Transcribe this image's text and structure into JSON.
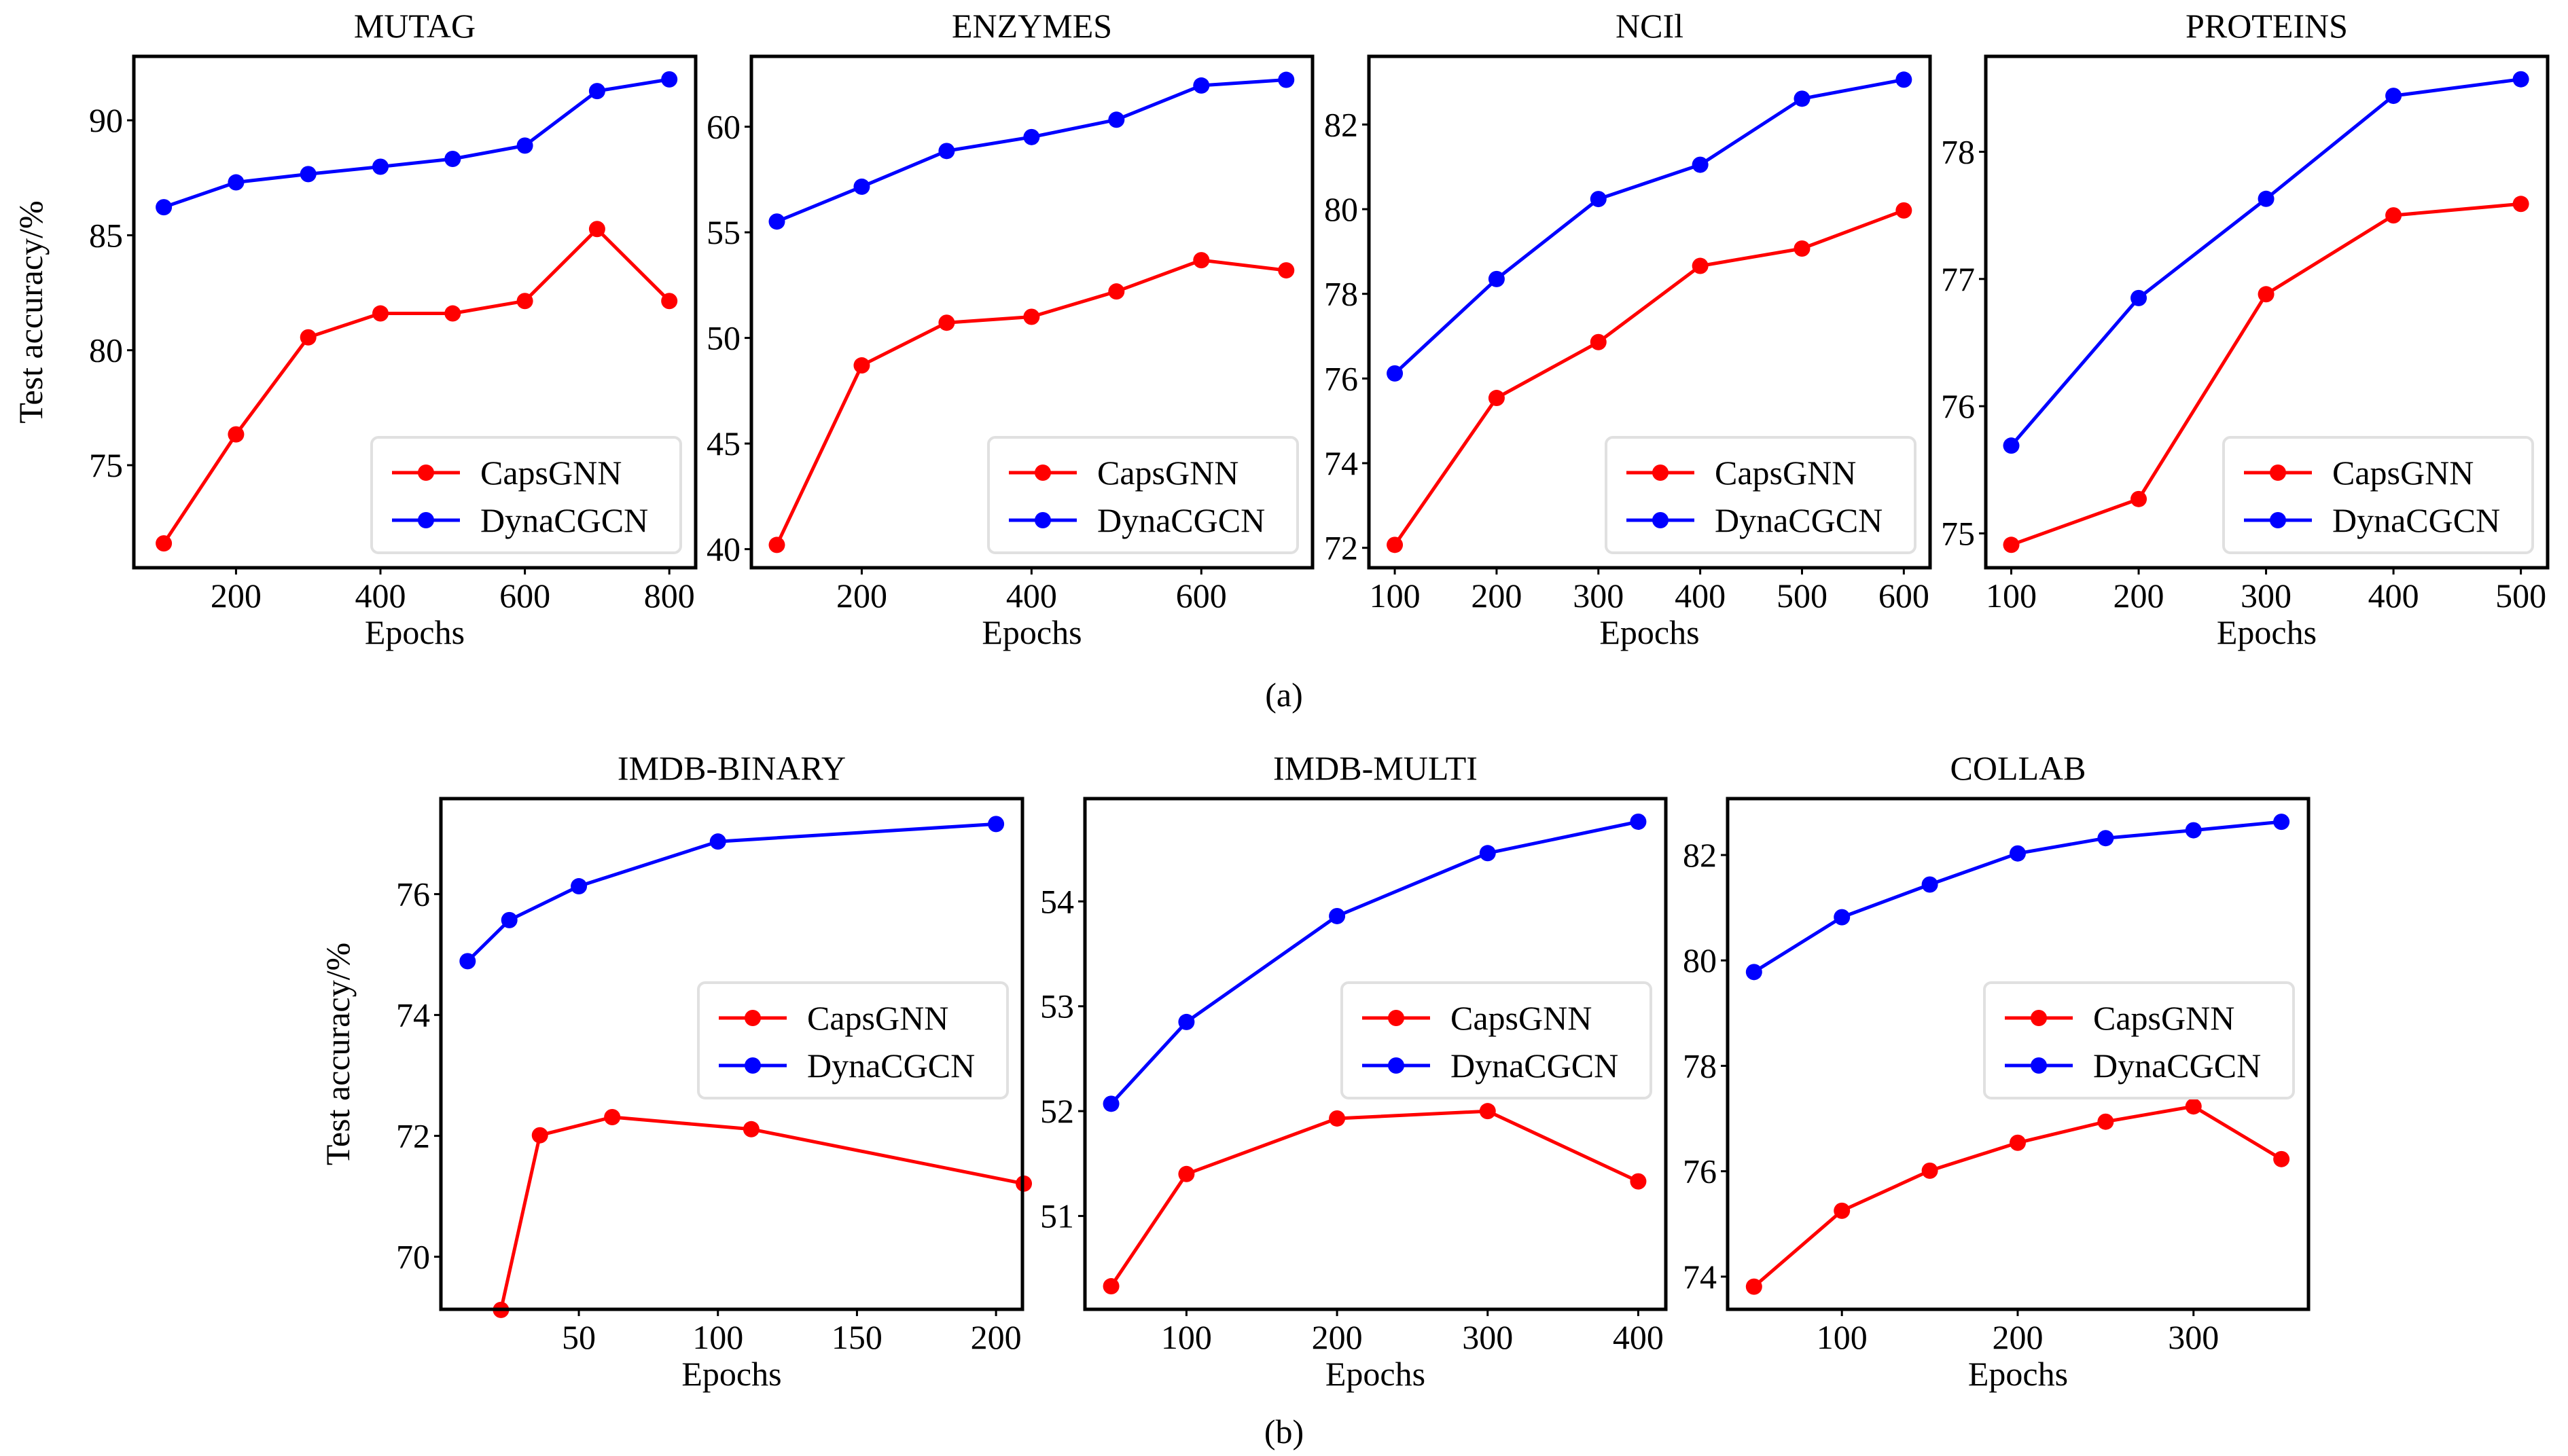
{
  "figure": {
    "panel_labels": [
      "(a)",
      "(b)"
    ]
  },
  "legend": {
    "series": [
      {
        "name": "CapsGNN",
        "color": "#ff0000"
      },
      {
        "name": "DynaCGCN",
        "color": "#0000ff"
      }
    ]
  },
  "chart_data": [
    {
      "type": "line",
      "title": "MUTAG",
      "xlabel": "Epochs",
      "ylabel": "Test accuracy/%",
      "xlim": [
        58.5,
        836.5
      ],
      "ylim": [
        70.54,
        92.78
      ],
      "xticks": [
        200,
        400,
        600,
        800
      ],
      "yticks": [
        75,
        80,
        85,
        90
      ],
      "legend_position": "lower-right",
      "grid": false,
      "series": [
        {
          "name": "CapsGNN",
          "color": "#ff0000",
          "x": [
            100,
            200,
            300,
            400,
            500,
            600,
            700,
            800
          ],
          "y": [
            71.6,
            76.34,
            80.56,
            81.6,
            81.6,
            82.14,
            85.27,
            82.14
          ]
        },
        {
          "name": "DynaCGCN",
          "color": "#0000ff",
          "x": [
            100,
            200,
            300,
            400,
            500,
            600,
            700,
            800
          ],
          "y": [
            86.22,
            87.3,
            87.66,
            87.98,
            88.32,
            88.9,
            91.27,
            91.78
          ]
        }
      ]
    },
    {
      "type": "line",
      "title": "ENZYMES",
      "xlabel": "Epochs",
      "ylabel": "",
      "xlim": [
        70,
        731
      ],
      "ylim": [
        39.12,
        63.33
      ],
      "xticks": [
        200,
        400,
        600
      ],
      "yticks": [
        40,
        45,
        50,
        55,
        60
      ],
      "legend_position": "lower-right",
      "grid": false,
      "series": [
        {
          "name": "CapsGNN",
          "color": "#ff0000",
          "x": [
            100,
            200,
            300,
            400,
            500,
            600,
            700
          ],
          "y": [
            40.2,
            48.7,
            50.72,
            51.0,
            52.2,
            53.68,
            53.2
          ]
        },
        {
          "name": "DynaCGCN",
          "color": "#0000ff",
          "x": [
            100,
            200,
            300,
            400,
            500,
            600,
            700
          ],
          "y": [
            55.51,
            57.16,
            58.85,
            59.51,
            60.33,
            61.95,
            62.22
          ]
        }
      ]
    },
    {
      "type": "line",
      "title": "NCIl",
      "xlabel": "Epochs",
      "ylabel": "",
      "xlim": [
        74.6,
        625.8
      ],
      "ylim": [
        71.53,
        83.61
      ],
      "xticks": [
        100,
        200,
        300,
        400,
        500,
        600
      ],
      "yticks": [
        72,
        74,
        76,
        78,
        80,
        82
      ],
      "legend_position": "lower-right",
      "grid": false,
      "series": [
        {
          "name": "CapsGNN",
          "color": "#ff0000",
          "x": [
            100,
            200,
            300,
            400,
            500,
            600
          ],
          "y": [
            72.07,
            75.54,
            76.86,
            78.66,
            79.07,
            79.97
          ]
        },
        {
          "name": "DynaCGCN",
          "color": "#0000ff",
          "x": [
            100,
            200,
            300,
            400,
            500,
            600
          ],
          "y": [
            76.12,
            78.35,
            80.24,
            81.05,
            82.61,
            83.06
          ]
        }
      ]
    },
    {
      "type": "line",
      "title": "PROTEINS",
      "xlabel": "Epochs",
      "ylabel": "",
      "xlim": [
        80,
        521
      ],
      "ylim": [
        74.73,
        78.75
      ],
      "xticks": [
        100,
        200,
        300,
        400,
        500
      ],
      "yticks": [
        75,
        76,
        77,
        78
      ],
      "legend_position": "lower-right",
      "grid": false,
      "series": [
        {
          "name": "CapsGNN",
          "color": "#ff0000",
          "x": [
            100,
            200,
            300,
            400,
            500
          ],
          "y": [
            74.91,
            75.27,
            76.88,
            77.5,
            77.59
          ]
        },
        {
          "name": "DynaCGCN",
          "color": "#0000ff",
          "x": [
            100,
            200,
            300,
            400,
            500
          ],
          "y": [
            75.69,
            76.85,
            77.63,
            78.44,
            78.57
          ]
        }
      ]
    },
    {
      "type": "line",
      "title": "IMDB-BINARY",
      "xlabel": "Epochs",
      "ylabel": "Test accuracy/%",
      "xlim": [
        0.4,
        209.5
      ],
      "ylim": [
        69.13,
        77.58
      ],
      "xticks": [
        50,
        100,
        150,
        200
      ],
      "yticks": [
        70,
        72,
        74,
        76
      ],
      "legend_position": "center-right",
      "grid": false,
      "series": [
        {
          "name": "CapsGNN",
          "color": "#ff0000",
          "x": [
            22,
            36,
            62,
            112,
            210
          ],
          "y": [
            69.12,
            72.01,
            72.31,
            72.11,
            71.21
          ]
        },
        {
          "name": "DynaCGCN",
          "color": "#0000ff",
          "x": [
            10,
            25,
            50,
            100,
            200
          ],
          "y": [
            74.89,
            75.57,
            76.13,
            76.87,
            77.16
          ]
        }
      ]
    },
    {
      "type": "line",
      "title": "IMDB-MULTI",
      "xlabel": "Epochs",
      "ylabel": "",
      "xlim": [
        32.6,
        418.3
      ],
      "ylim": [
        50.11,
        54.98
      ],
      "xticks": [
        100,
        200,
        300,
        400
      ],
      "yticks": [
        51,
        52,
        53,
        54
      ],
      "legend_position": "center-right",
      "grid": false,
      "series": [
        {
          "name": "CapsGNN",
          "color": "#ff0000",
          "x": [
            50,
            100,
            200,
            300,
            400
          ],
          "y": [
            50.33,
            51.4,
            51.93,
            52.0,
            51.33
          ]
        },
        {
          "name": "DynaCGCN",
          "color": "#0000ff",
          "x": [
            50,
            100,
            200,
            300,
            400
          ],
          "y": [
            52.07,
            52.85,
            53.86,
            54.46,
            54.76
          ]
        }
      ]
    },
    {
      "type": "line",
      "title": "COLLAB",
      "xlabel": "Epochs",
      "ylabel": "",
      "xlim": [
        35,
        365.4
      ],
      "ylim": [
        73.38,
        83.07
      ],
      "xticks": [
        100,
        200,
        300
      ],
      "yticks": [
        74,
        76,
        78,
        80,
        82
      ],
      "legend_position": "center-right",
      "grid": false,
      "series": [
        {
          "name": "CapsGNN",
          "color": "#ff0000",
          "x": [
            50,
            100,
            150,
            200,
            250,
            300,
            350
          ],
          "y": [
            73.81,
            75.25,
            76.01,
            76.54,
            76.94,
            77.23,
            76.23
          ]
        },
        {
          "name": "DynaCGCN",
          "color": "#0000ff",
          "x": [
            50,
            100,
            150,
            200,
            250,
            300,
            350
          ],
          "y": [
            79.78,
            80.82,
            81.44,
            82.03,
            82.32,
            82.47,
            82.63
          ]
        }
      ]
    }
  ]
}
